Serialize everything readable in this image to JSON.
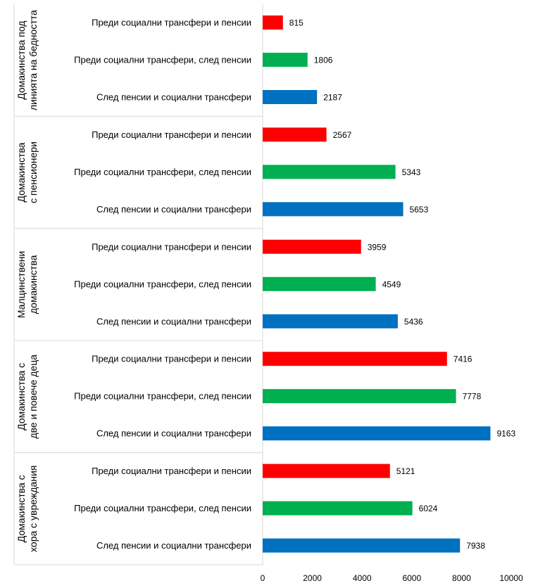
{
  "chart_data": {
    "type": "bar",
    "orientation": "horizontal",
    "groups": [
      {
        "label": "Домакинства под линията на бедността",
        "bars": [
          {
            "label": "Преди социални трансфери и пенсии",
            "value": 815,
            "color": "#ff0000"
          },
          {
            "label": "Преди социални трансфери, след пенсии",
            "value": 1806,
            "color": "#00b050"
          },
          {
            "label": "След пенсии и социални трансфери",
            "value": 2187,
            "color": "#0070c0"
          }
        ]
      },
      {
        "label": "Домакинства с пенсионери",
        "bars": [
          {
            "label": "Преди социални трансфери и пенсии",
            "value": 2567,
            "color": "#ff0000"
          },
          {
            "label": "Преди социални трансфери, след пенсии",
            "value": 5343,
            "color": "#00b050"
          },
          {
            "label": "След пенсии и социални трансфери",
            "value": 5653,
            "color": "#0070c0"
          }
        ]
      },
      {
        "label": "Малцинствени домакинства",
        "bars": [
          {
            "label": "Преди социални трансфери и пенсии",
            "value": 3959,
            "color": "#ff0000"
          },
          {
            "label": "Преди социални трансфери, след пенсии",
            "value": 4549,
            "color": "#00b050"
          },
          {
            "label": "След пенсии и социални трансфери",
            "value": 5436,
            "color": "#0070c0"
          }
        ]
      },
      {
        "label": "Домакинства с две и повече деца",
        "bars": [
          {
            "label": "Преди социални трансфери и пенсии",
            "value": 7416,
            "color": "#ff0000"
          },
          {
            "label": "Преди социални трансфери, след пенсии",
            "value": 7778,
            "color": "#00b050"
          },
          {
            "label": "След пенсии и социални трансфери",
            "value": 9163,
            "color": "#0070c0"
          }
        ]
      },
      {
        "label": "Домакинства с хора с увреждания",
        "bars": [
          {
            "label": "Преди социални трансфери и пенсии",
            "value": 5121,
            "color": "#ff0000"
          },
          {
            "label": "Преди социални трансфери, след пенсии",
            "value": 6024,
            "color": "#00b050"
          },
          {
            "label": "След пенсии и социални трансфери",
            "value": 7938,
            "color": "#0070c0"
          }
        ]
      }
    ],
    "x_ticks": [
      "0",
      "2000",
      "4000",
      "6000",
      "8000",
      "10000"
    ],
    "xlim": [
      0,
      10000
    ],
    "grid": false,
    "legend": "none",
    "title": "",
    "xlabel": "",
    "ylabel": ""
  }
}
